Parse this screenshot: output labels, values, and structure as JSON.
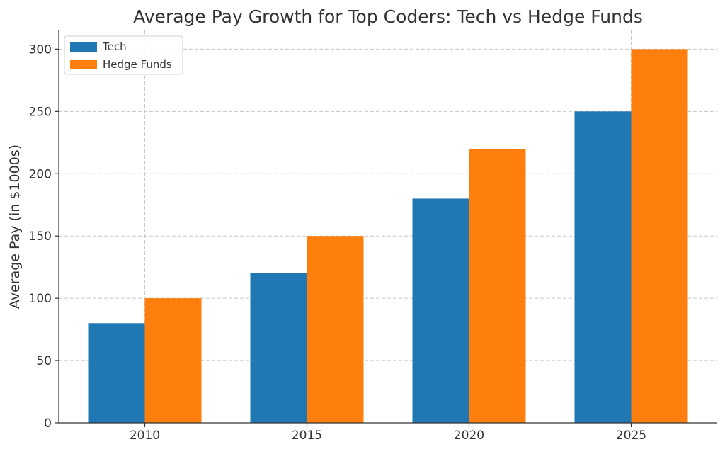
{
  "chart_data": {
    "type": "bar",
    "title": "Average Pay Growth for Top Coders: Tech vs Hedge Funds",
    "xlabel": "",
    "ylabel": "Average Pay (in $1000s)",
    "categories": [
      "2010",
      "2015",
      "2020",
      "2025"
    ],
    "series": [
      {
        "name": "Tech",
        "values": [
          80,
          120,
          180,
          250
        ],
        "color": "#1f77b4"
      },
      {
        "name": "Hedge Funds",
        "values": [
          100,
          150,
          220,
          300
        ],
        "color": "#ff7f0e"
      }
    ],
    "ylim": [
      0,
      315
    ],
    "yticks": [
      0,
      50,
      100,
      150,
      200,
      250,
      300
    ],
    "grid": true,
    "legend_position": "top-left"
  }
}
